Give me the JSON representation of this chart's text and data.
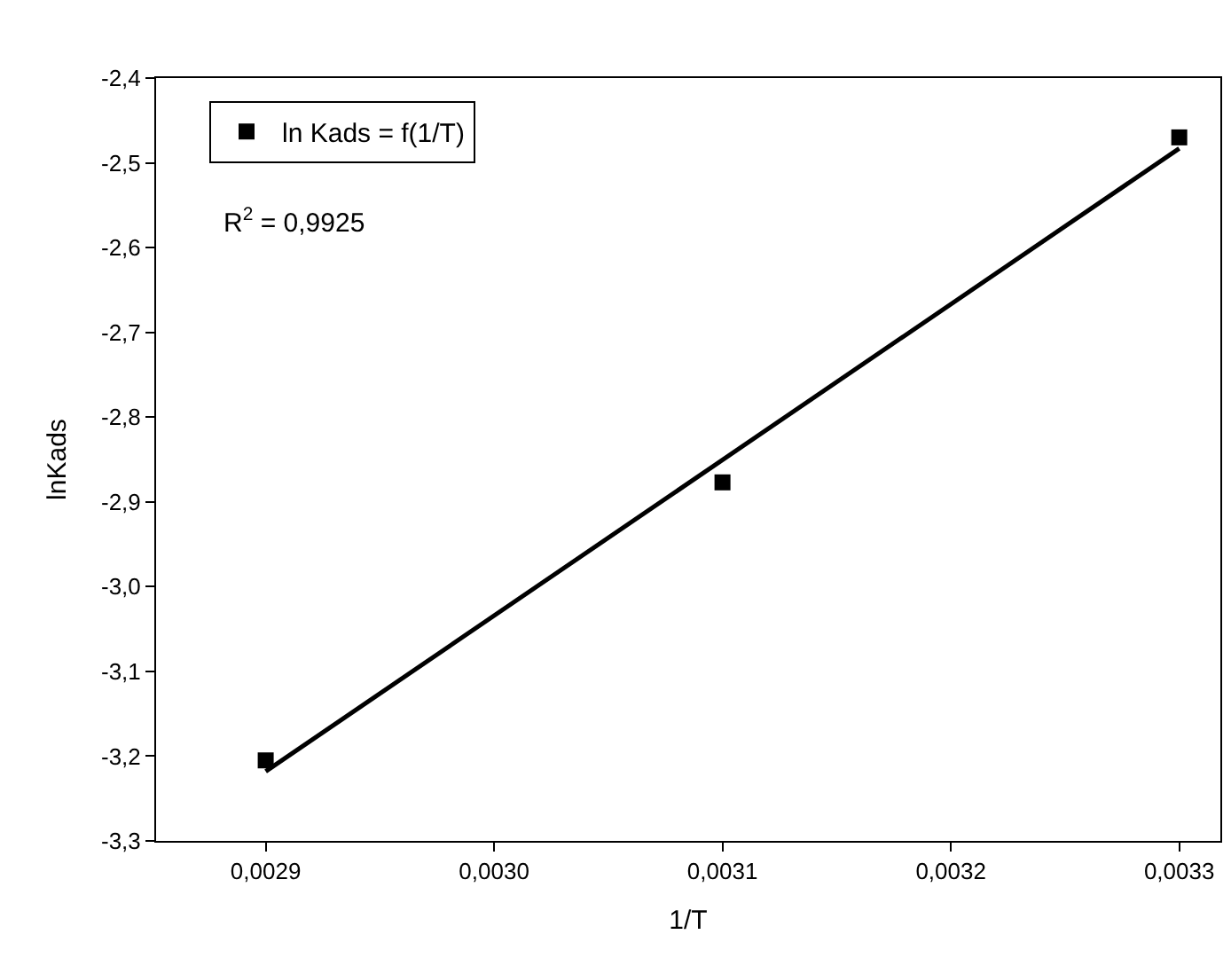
{
  "chart_data": {
    "type": "scatter",
    "xlabel": "1/T",
    "ylabel": "lnKads",
    "series": [
      {
        "name": "ln Kads = f(1/T)",
        "color": "#000000",
        "marker": "square",
        "x": [
          0.0029,
          0.0031,
          0.0033
        ],
        "values": [
          -3.205,
          -2.877,
          -2.47
        ]
      },
      {
        "type": "line",
        "color": "#000000",
        "marker": "none",
        "line_style": "solid",
        "x": [
          0.0029,
          0.0033
        ],
        "values": [
          -3.218,
          -2.483
        ]
      }
    ],
    "annotations": [
      "R$^{2}$ = 0,9925"
    ],
    "xlim": [
      0.002852,
      0.003318
    ],
    "xticks": [
      {
        "value": 0.0029,
        "label": "0,0029"
      },
      {
        "value": 0.003,
        "label": "0,0030"
      },
      {
        "value": 0.0031,
        "label": "0,0031"
      },
      {
        "value": 0.0032,
        "label": "0,0032"
      },
      {
        "value": 0.0033,
        "label": "0,0033"
      }
    ],
    "ylim": [
      -3.3,
      -2.4
    ],
    "yticks": [
      {
        "value": -3.3,
        "label": "-3,3"
      },
      {
        "value": -3.2,
        "label": "-3,2"
      },
      {
        "value": -3.1,
        "label": "-3,1"
      },
      {
        "value": -3.0,
        "label": "-3,0"
      },
      {
        "value": -2.9,
        "label": "-2,9"
      },
      {
        "value": -2.8,
        "label": "-2,8"
      },
      {
        "value": -2.7,
        "label": "-2,7"
      },
      {
        "value": -2.6,
        "label": "-2,6"
      },
      {
        "value": -2.5,
        "label": "-2,5"
      },
      {
        "value": -2.4,
        "label": "-2,4"
      }
    ],
    "legend": "top left"
  }
}
